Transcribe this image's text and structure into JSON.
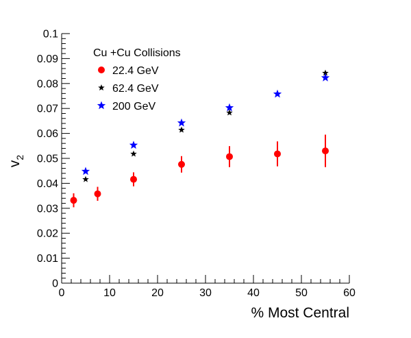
{
  "chart_data": {
    "type": "scatter",
    "title": "",
    "xlabel": "% Most Central",
    "ylabel_main": "v",
    "ylabel_sub": "2",
    "xlim": [
      0,
      60
    ],
    "ylim": [
      0,
      0.1
    ],
    "x_ticks": [
      "0",
      "10",
      "20",
      "30",
      "40",
      "50",
      "60"
    ],
    "y_ticks": [
      "0",
      "0.01",
      "0.02",
      "0.03",
      "0.04",
      "0.05",
      "0.06",
      "0.07",
      "0.08",
      "0.09",
      "0.1"
    ],
    "grid": false,
    "legend_title": "Cu +Cu Collisions",
    "legend_position": "top-left",
    "series": [
      {
        "name": "22.4 GeV",
        "marker": "circle",
        "color": "#ff0000",
        "points": [
          {
            "x": 2.5,
            "y": 0.0332,
            "err": 0.0028
          },
          {
            "x": 7.5,
            "y": 0.0358,
            "err": 0.0028
          },
          {
            "x": 15,
            "y": 0.0416,
            "err": 0.0028
          },
          {
            "x": 25,
            "y": 0.0476,
            "err": 0.0033
          },
          {
            "x": 35,
            "y": 0.0507,
            "err": 0.0042
          },
          {
            "x": 45,
            "y": 0.0518,
            "err": 0.005
          },
          {
            "x": 55,
            "y": 0.053,
            "err": 0.0065
          }
        ]
      },
      {
        "name": "62.4 GeV",
        "marker": "star",
        "color": "#000000",
        "points": [
          {
            "x": 5,
            "y": 0.0416
          },
          {
            "x": 15,
            "y": 0.0518
          },
          {
            "x": 25,
            "y": 0.0614
          },
          {
            "x": 35,
            "y": 0.0683
          },
          {
            "x": 55,
            "y": 0.0842
          }
        ]
      },
      {
        "name": "200 GeV",
        "marker": "star",
        "color": "#0000ff",
        "points": [
          {
            "x": 5,
            "y": 0.0448
          },
          {
            "x": 15,
            "y": 0.0553
          },
          {
            "x": 25,
            "y": 0.0642
          },
          {
            "x": 35,
            "y": 0.0703
          },
          {
            "x": 45,
            "y": 0.0758
          },
          {
            "x": 55,
            "y": 0.0823
          }
        ]
      }
    ]
  }
}
